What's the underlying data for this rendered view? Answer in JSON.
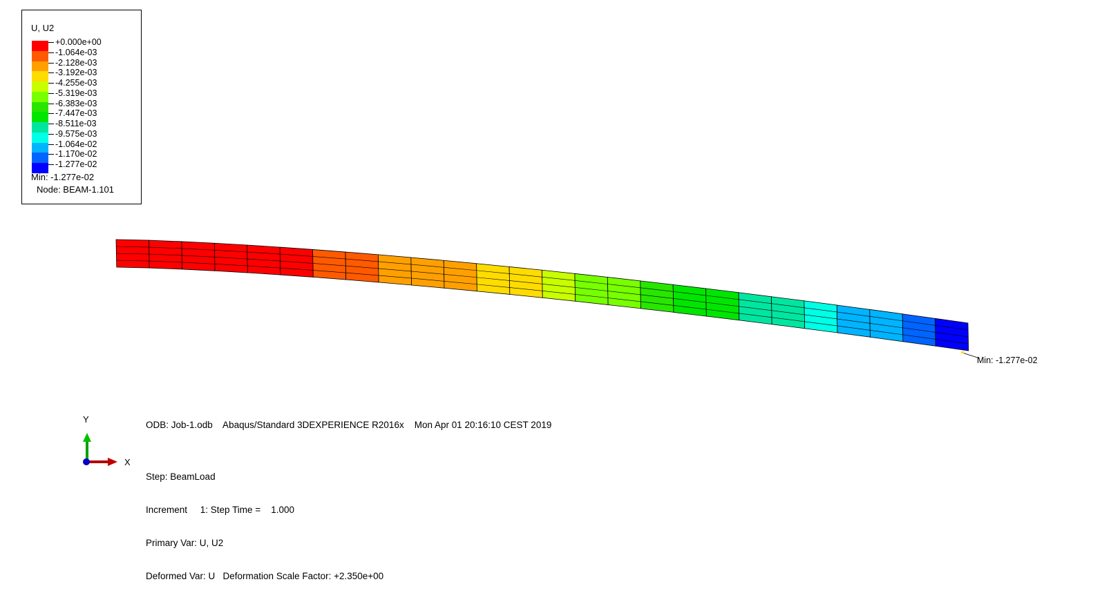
{
  "legend": {
    "title": "U, U2",
    "colors": [
      "#ff0000",
      "#ff5a00",
      "#ffa000",
      "#ffdc00",
      "#c8ff00",
      "#78ff00",
      "#28e600",
      "#00e600",
      "#00e6a0",
      "#00ffe6",
      "#00b4ff",
      "#0064ff",
      "#0000ff"
    ],
    "ticks": [
      "+0.000e+00",
      "-1.064e-03",
      "-2.128e-03",
      "-3.192e-03",
      "-4.255e-03",
      "-5.319e-03",
      "-6.383e-03",
      "-7.447e-03",
      "-8.511e-03",
      "-9.575e-03",
      "-1.064e-02",
      "-1.170e-02",
      "-1.277e-02"
    ],
    "min_label": "Min: -1.277e-02",
    "node_label": "Node: BEAM-1.101"
  },
  "viewport": {
    "min_marker_label": "Min: -1.277e-02",
    "beam_colors": [
      "#ff0000",
      "#ff0000",
      "#ff0000",
      "#ff0000",
      "#ff0000",
      "#ff0000",
      "#ff5a00",
      "#ff5a00",
      "#ffa000",
      "#ffa000",
      "#ffa000",
      "#ffdc00",
      "#ffdc00",
      "#c8ff00",
      "#78ff00",
      "#78ff00",
      "#28e600",
      "#00e600",
      "#00e600",
      "#00e6a0",
      "#00e6a0",
      "#00ffe6",
      "#00b4ff",
      "#00b4ff",
      "#0064ff",
      "#0000ff"
    ]
  },
  "triad": {
    "y_label": "Y",
    "x_label": "X"
  },
  "info": {
    "odb_line": "ODB: Job-1.odb    Abaqus/Standard 3DEXPERIENCE R2016x    Mon Apr 01 20:16:10 CEST 2019",
    "step_line": "Step: BeamLoad",
    "increment_line": "Increment     1: Step Time =    1.000",
    "primary_var_line": "Primary Var: U, U2",
    "deformed_var_line": "Deformed Var: U   Deformation Scale Factor: +2.350e+00"
  }
}
